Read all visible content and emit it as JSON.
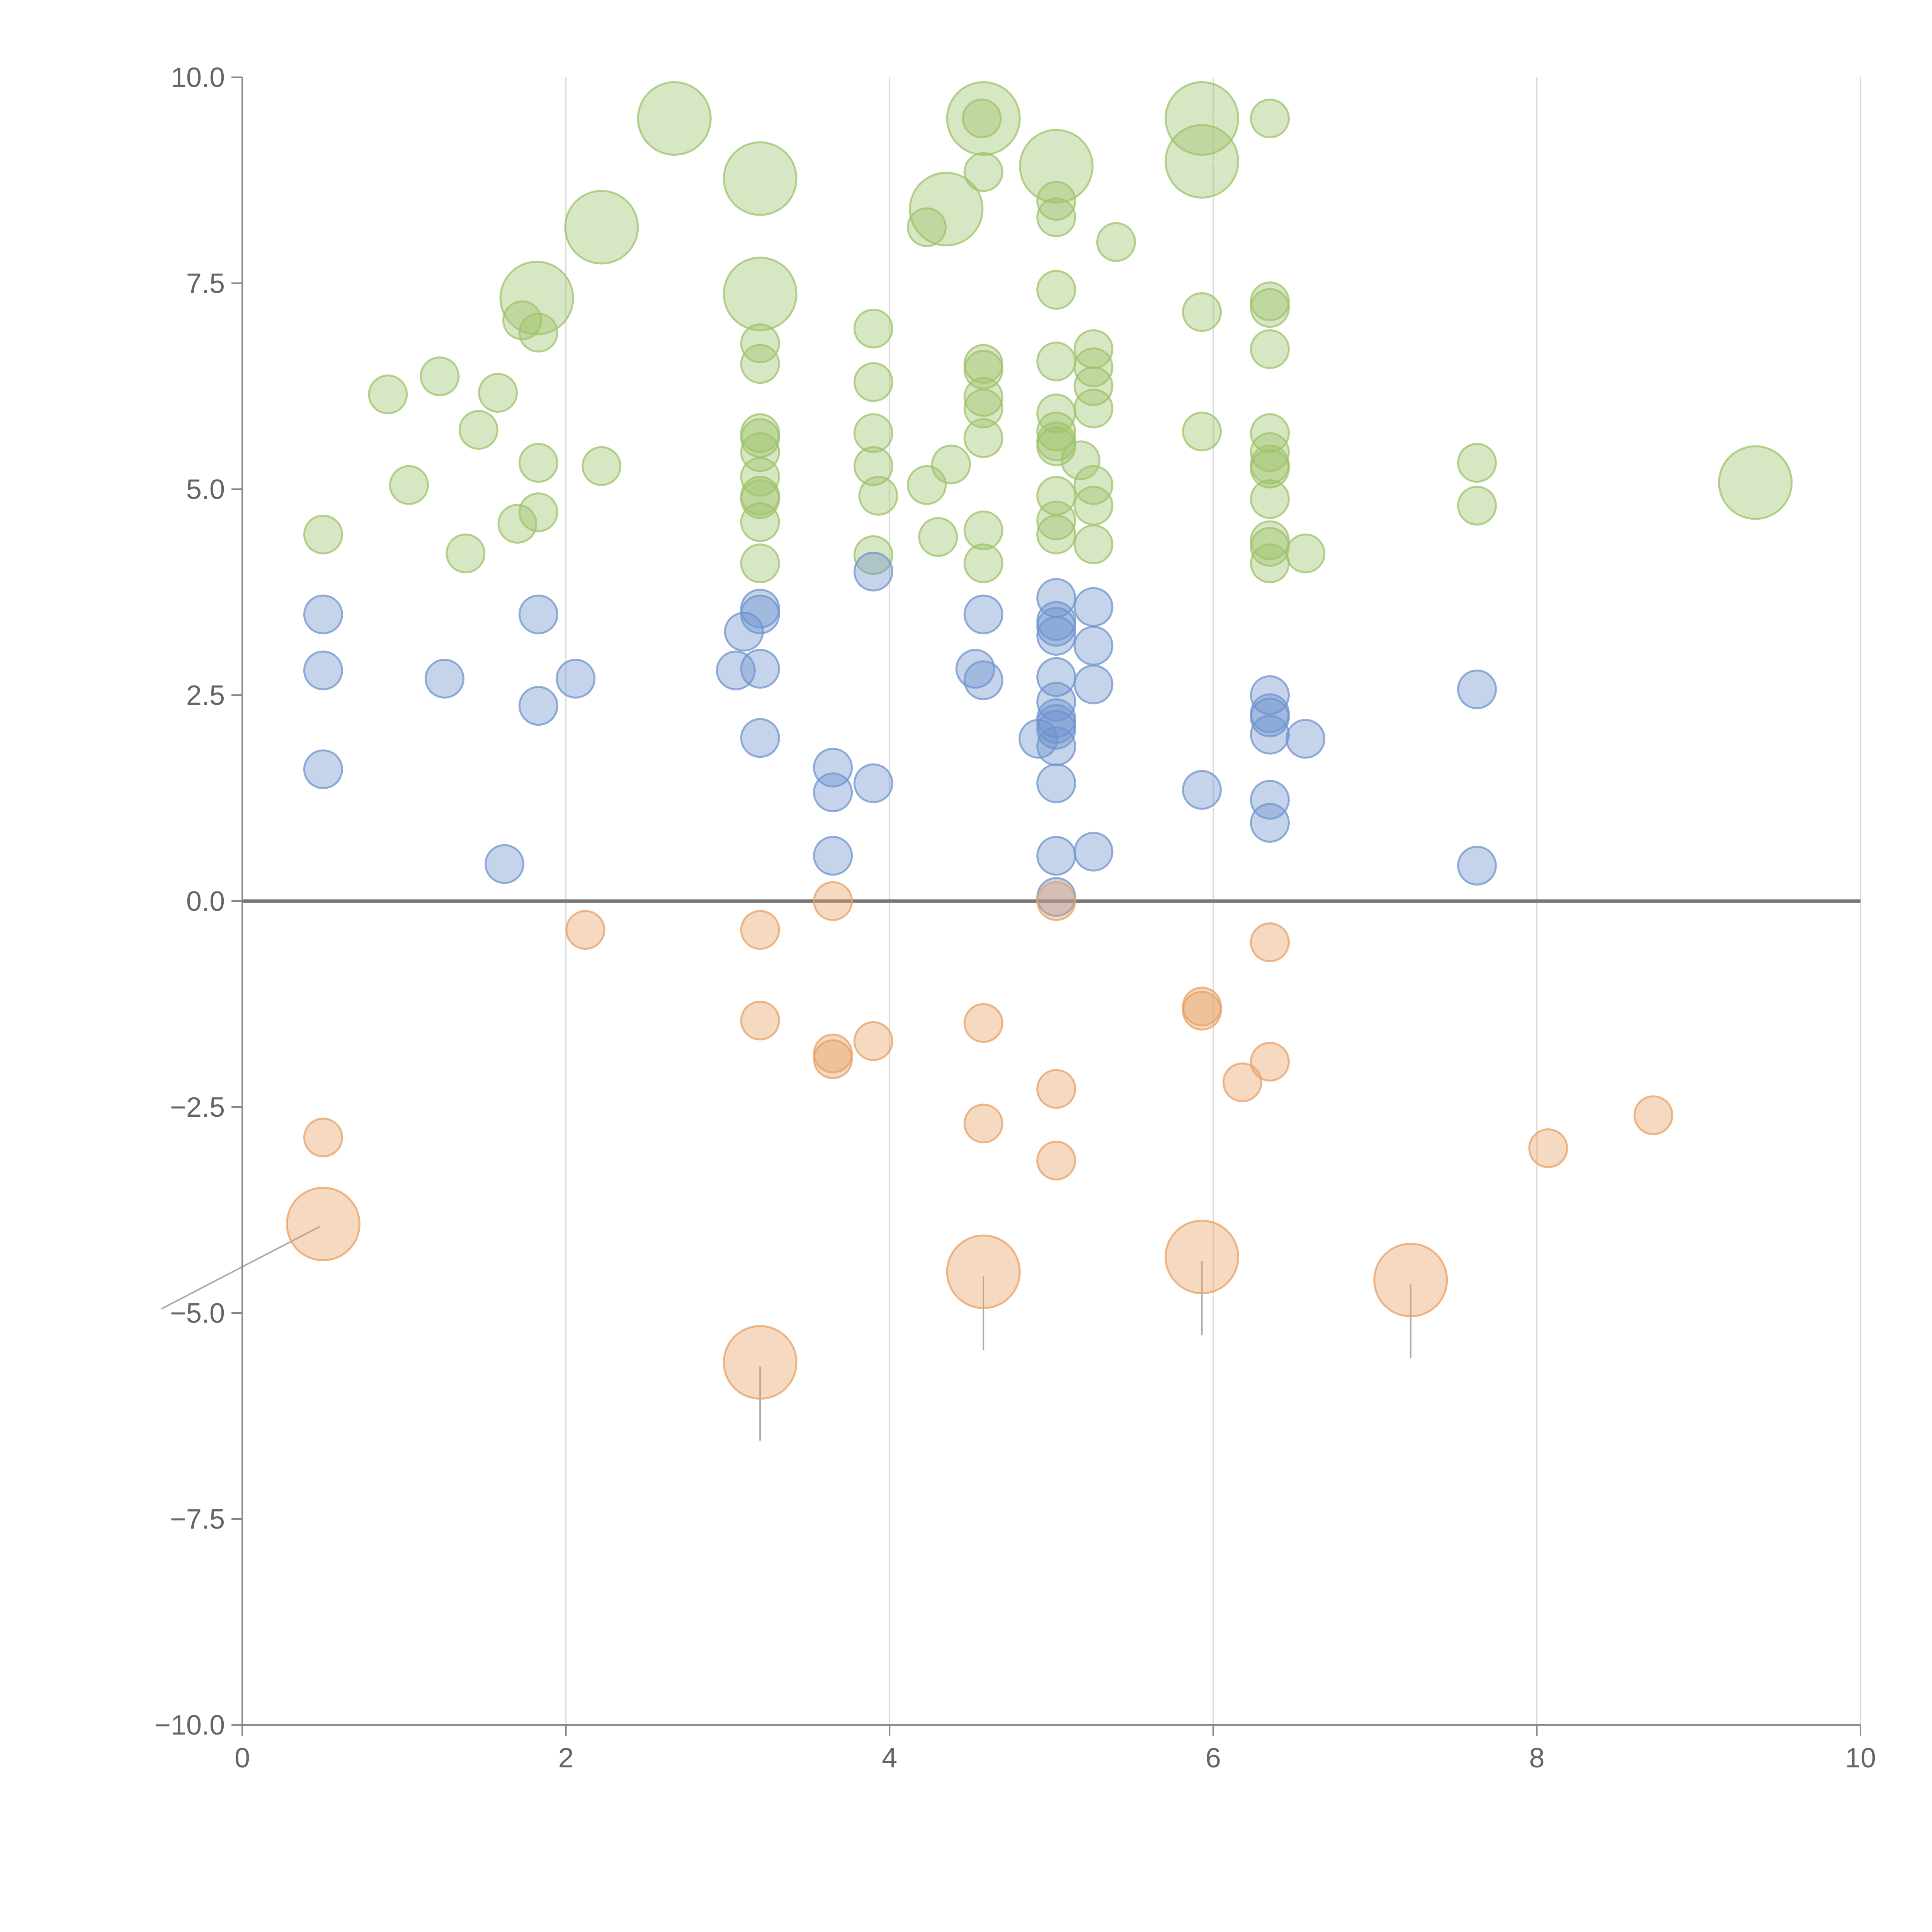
{
  "chart_data": {
    "type": "scatter",
    "title": "",
    "xlabel": "",
    "ylabel": "",
    "xlim": [
      0,
      10
    ],
    "ylim": [
      -10,
      10
    ],
    "x_ticks": [
      "0",
      "2",
      "4",
      "6",
      "8",
      "10"
    ],
    "y_ticks": [
      "10.0",
      "7.5",
      "5.0",
      "2.5",
      "0.0",
      "−2.5",
      "−5.0",
      "−7.5",
      "−10.0"
    ],
    "x_tick_values": [
      0,
      2,
      4,
      6,
      8,
      10
    ],
    "y_tick_values": [
      10,
      7.5,
      5,
      2.5,
      0,
      -2.5,
      -5,
      -7.5,
      -10
    ],
    "grid": "vertical",
    "legend": "none",
    "colors": {
      "green": "#9dc36a",
      "blue": "#6f94cd",
      "orange": "#e8a064",
      "axis": "#888888",
      "grid": "#d9d9d9",
      "zero_line": "#777777"
    },
    "series": [
      {
        "color": "green",
        "points": [
          [
            0.5,
            4.45,
            1
          ],
          [
            0.9,
            6.15,
            1
          ],
          [
            1.03,
            5.05,
            1
          ],
          [
            1.22,
            6.37,
            1
          ],
          [
            1.38,
            4.22,
            1
          ],
          [
            1.46,
            5.72,
            1
          ],
          [
            1.58,
            6.17,
            1
          ],
          [
            1.7,
            4.58,
            1
          ],
          [
            1.73,
            7.05,
            1
          ],
          [
            1.83,
            6.9,
            1
          ],
          [
            1.83,
            5.32,
            1
          ],
          [
            1.83,
            4.72,
            1
          ],
          [
            2.22,
            5.28,
            1
          ],
          [
            3.2,
            6.77,
            1
          ],
          [
            3.2,
            6.52,
            1
          ],
          [
            3.2,
            5.68,
            1
          ],
          [
            3.2,
            5.62,
            1
          ],
          [
            3.2,
            5.45,
            1
          ],
          [
            3.2,
            5.15,
            1
          ],
          [
            3.2,
            4.92,
            1
          ],
          [
            3.2,
            4.88,
            1
          ],
          [
            3.2,
            4.6,
            1
          ],
          [
            3.2,
            4.1,
            1
          ],
          [
            3.9,
            6.95,
            1
          ],
          [
            3.9,
            6.3,
            1
          ],
          [
            3.9,
            5.68,
            1
          ],
          [
            3.9,
            5.28,
            1
          ],
          [
            3.9,
            4.2,
            1
          ],
          [
            3.93,
            4.92,
            1
          ],
          [
            4.23,
            8.18,
            1
          ],
          [
            4.23,
            5.05,
            1
          ],
          [
            4.3,
            4.42,
            1
          ],
          [
            4.38,
            5.3,
            1
          ],
          [
            4.57,
            9.5,
            1
          ],
          [
            4.58,
            8.85,
            1
          ],
          [
            4.58,
            6.52,
            1
          ],
          [
            4.58,
            6.45,
            1
          ],
          [
            4.58,
            6.12,
            1
          ],
          [
            4.58,
            5.98,
            1
          ],
          [
            4.58,
            5.62,
            1
          ],
          [
            4.58,
            4.5,
            1
          ],
          [
            4.58,
            4.1,
            1
          ],
          [
            5.03,
            8.5,
            1
          ],
          [
            5.03,
            8.3,
            1
          ],
          [
            5.03,
            7.42,
            1
          ],
          [
            5.03,
            6.55,
            1
          ],
          [
            5.03,
            5.92,
            1
          ],
          [
            5.03,
            5.7,
            1
          ],
          [
            5.03,
            5.58,
            1
          ],
          [
            5.03,
            5.52,
            1
          ],
          [
            5.03,
            4.92,
            1
          ],
          [
            5.03,
            4.62,
            1
          ],
          [
            5.03,
            4.45,
            1
          ],
          [
            5.18,
            5.35,
            1
          ],
          [
            5.26,
            6.7,
            1
          ],
          [
            5.26,
            6.48,
            1
          ],
          [
            5.26,
            6.25,
            1
          ],
          [
            5.26,
            5.98,
            1
          ],
          [
            5.26,
            5.05,
            1
          ],
          [
            5.26,
            4.8,
            1
          ],
          [
            5.26,
            4.33,
            1
          ],
          [
            5.4,
            8.0,
            1
          ],
          [
            5.93,
            7.15,
            1
          ],
          [
            5.93,
            5.7,
            1
          ],
          [
            6.35,
            9.5,
            1
          ],
          [
            6.35,
            7.28,
            1
          ],
          [
            6.35,
            7.2,
            1
          ],
          [
            6.35,
            6.7,
            1
          ],
          [
            6.35,
            5.68,
            1
          ],
          [
            6.35,
            5.45,
            1
          ],
          [
            6.35,
            5.3,
            1
          ],
          [
            6.35,
            5.25,
            1
          ],
          [
            6.35,
            4.88,
            1
          ],
          [
            6.35,
            4.38,
            1
          ],
          [
            6.35,
            4.3,
            1
          ],
          [
            6.35,
            4.1,
            1
          ],
          [
            6.57,
            4.22,
            1
          ],
          [
            7.63,
            5.32,
            1
          ],
          [
            7.63,
            4.8,
            1
          ],
          [
            1.82,
            7.32,
            2
          ],
          [
            2.22,
            8.18,
            2
          ],
          [
            2.67,
            9.5,
            2
          ],
          [
            3.2,
            8.77,
            2
          ],
          [
            3.2,
            7.37,
            2
          ],
          [
            4.35,
            8.4,
            2
          ],
          [
            4.58,
            9.5,
            2
          ],
          [
            5.03,
            8.92,
            2
          ],
          [
            5.93,
            9.5,
            2
          ],
          [
            5.93,
            8.98,
            2
          ],
          [
            9.35,
            5.08,
            2
          ]
        ]
      },
      {
        "color": "blue",
        "points": [
          [
            0.5,
            3.48,
            1
          ],
          [
            0.5,
            2.8,
            1
          ],
          [
            0.5,
            1.6,
            1
          ],
          [
            1.25,
            2.7,
            1
          ],
          [
            1.62,
            0.45,
            1
          ],
          [
            1.83,
            3.48,
            1
          ],
          [
            1.83,
            2.37,
            1
          ],
          [
            2.06,
            2.7,
            1
          ],
          [
            3.05,
            2.8,
            1
          ],
          [
            3.1,
            3.27,
            1
          ],
          [
            3.2,
            3.55,
            1
          ],
          [
            3.2,
            3.48,
            1
          ],
          [
            3.2,
            2.82,
            1
          ],
          [
            3.2,
            1.98,
            1
          ],
          [
            3.65,
            1.62,
            1
          ],
          [
            3.65,
            1.32,
            1
          ],
          [
            3.65,
            0.55,
            1
          ],
          [
            3.9,
            4.0,
            1
          ],
          [
            3.9,
            1.43,
            1
          ],
          [
            4.53,
            2.82,
            1
          ],
          [
            4.58,
            3.48,
            1
          ],
          [
            4.58,
            2.68,
            1
          ],
          [
            4.92,
            1.97,
            1
          ],
          [
            5.03,
            3.68,
            1
          ],
          [
            5.03,
            3.4,
            1
          ],
          [
            5.03,
            3.33,
            1
          ],
          [
            5.03,
            3.22,
            1
          ],
          [
            5.03,
            2.72,
            1
          ],
          [
            5.03,
            2.42,
            1
          ],
          [
            5.03,
            2.22,
            1
          ],
          [
            5.03,
            2.15,
            1
          ],
          [
            5.03,
            2.08,
            1
          ],
          [
            5.03,
            1.88,
            1
          ],
          [
            5.03,
            1.43,
            1
          ],
          [
            5.03,
            0.55,
            1
          ],
          [
            5.03,
            0.05,
            1
          ],
          [
            5.26,
            3.57,
            1
          ],
          [
            5.26,
            3.1,
            1
          ],
          [
            5.26,
            2.63,
            1
          ],
          [
            5.26,
            0.6,
            1
          ],
          [
            5.93,
            1.35,
            1
          ],
          [
            6.35,
            2.5,
            1
          ],
          [
            6.35,
            2.28,
            1
          ],
          [
            6.35,
            2.23,
            1
          ],
          [
            6.35,
            2.02,
            1
          ],
          [
            6.35,
            1.23,
            1
          ],
          [
            6.35,
            0.95,
            1
          ],
          [
            6.57,
            1.97,
            1
          ],
          [
            7.63,
            2.57,
            1
          ],
          [
            7.63,
            0.43,
            1
          ]
        ]
      },
      {
        "color": "orange",
        "points": [
          [
            0.5,
            -2.87,
            1
          ],
          [
            2.12,
            -0.35,
            1
          ],
          [
            3.2,
            -0.35,
            1
          ],
          [
            3.2,
            -1.45,
            1
          ],
          [
            3.65,
            0.0,
            1
          ],
          [
            3.65,
            -1.85,
            1
          ],
          [
            3.65,
            -1.92,
            1
          ],
          [
            3.9,
            -1.7,
            1
          ],
          [
            4.58,
            -1.48,
            1
          ],
          [
            4.58,
            -2.7,
            1
          ],
          [
            5.03,
            0.0,
            1
          ],
          [
            5.03,
            -2.28,
            1
          ],
          [
            5.03,
            -3.15,
            1
          ],
          [
            5.93,
            -1.28,
            1
          ],
          [
            5.93,
            -1.33,
            1
          ],
          [
            6.18,
            -2.2,
            1
          ],
          [
            6.35,
            -0.5,
            1
          ],
          [
            6.35,
            -1.95,
            1
          ],
          [
            8.07,
            -3.0,
            1
          ],
          [
            8.72,
            -2.6,
            1
          ],
          [
            0.5,
            -3.92,
            2
          ],
          [
            3.2,
            -5.6,
            2
          ],
          [
            4.58,
            -4.5,
            2
          ],
          [
            5.93,
            -4.32,
            2
          ],
          [
            7.22,
            -4.6,
            2
          ]
        ]
      }
    ]
  }
}
